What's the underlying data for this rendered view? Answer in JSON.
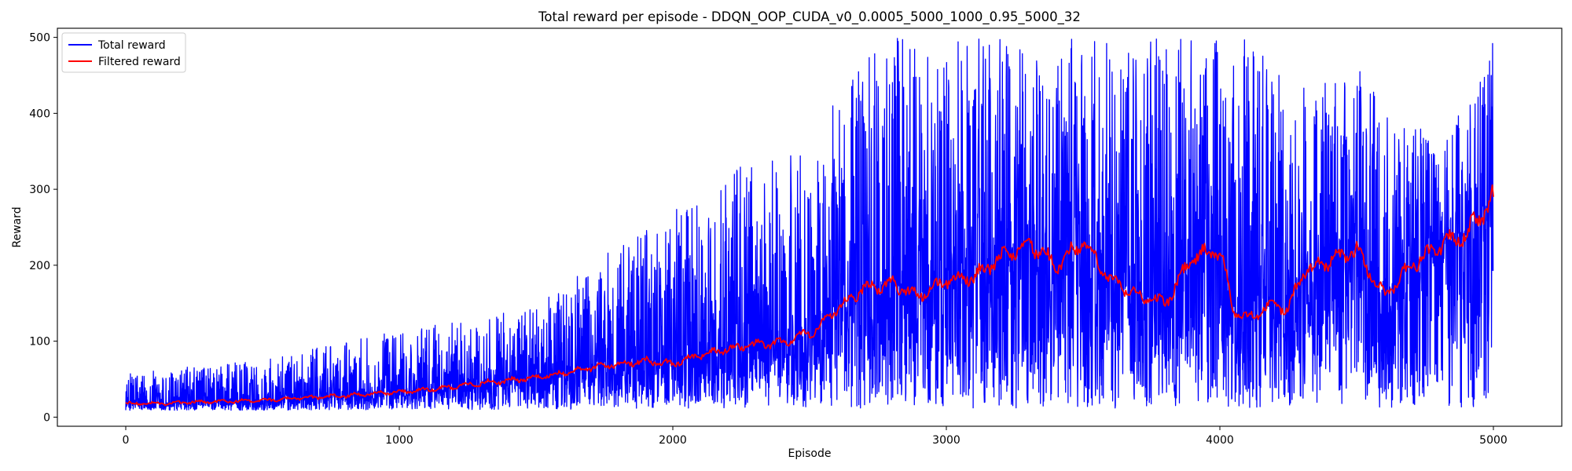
{
  "chart_data": {
    "type": "line",
    "title": "Total reward per episode - DDQN_OOP_CUDA_v0_0.0005_5000_1000_0.95_5000_32",
    "xlabel": "Episode",
    "ylabel": "Reward",
    "xlim": [
      -250,
      5250
    ],
    "ylim": [
      -12,
      512
    ],
    "xticks": [
      0,
      1000,
      2000,
      3000,
      4000,
      5000
    ],
    "yticks": [
      0,
      100,
      200,
      300,
      400,
      500
    ],
    "grid": false,
    "legend_position": "upper-left",
    "series": [
      {
        "name": "Total reward",
        "color": "#0000ff",
        "style": "noisy",
        "episodes": 5000,
        "approx_envelope": {
          "x": [
            0,
            500,
            1000,
            1300,
            1500,
            1800,
            2000,
            2300,
            2500,
            2700,
            2900,
            3000,
            3200,
            3300,
            3500,
            3700,
            3900,
            4000,
            4100,
            4200,
            4300,
            4500,
            4700,
            4900,
            5000
          ],
          "low": [
            9,
            9,
            10,
            10,
            10,
            11,
            11,
            11,
            12,
            12,
            12,
            12,
            12,
            12,
            12,
            12,
            12,
            12,
            12,
            12,
            12,
            12,
            12,
            12,
            12
          ],
          "high": [
            60,
            75,
            115,
            130,
            150,
            230,
            270,
            345,
            345,
            500,
            500,
            500,
            500,
            500,
            500,
            500,
            500,
            500,
            500,
            460,
            440,
            460,
            380,
            400,
            500
          ]
        }
      },
      {
        "name": "Filtered reward",
        "color": "#ff0000",
        "style": "smooth",
        "x": [
          0,
          100,
          200,
          300,
          400,
          500,
          600,
          700,
          800,
          900,
          1000,
          1100,
          1200,
          1300,
          1400,
          1500,
          1600,
          1700,
          1800,
          1900,
          2000,
          2100,
          2200,
          2300,
          2400,
          2500,
          2600,
          2700,
          2800,
          2900,
          3000,
          3100,
          3200,
          3300,
          3400,
          3500,
          3600,
          3700,
          3800,
          3900,
          4000,
          4050,
          4100,
          4150,
          4200,
          4250,
          4300,
          4400,
          4500,
          4600,
          4700,
          4800,
          4900,
          5000
        ],
        "y": [
          18,
          18,
          19,
          20,
          21,
          22,
          24,
          26,
          28,
          31,
          33,
          36,
          40,
          45,
          48,
          52,
          58,
          65,
          70,
          74,
          70,
          82,
          90,
          95,
          98,
          110,
          140,
          170,
          175,
          160,
          180,
          185,
          210,
          230,
          200,
          230,
          180,
          160,
          150,
          210,
          220,
          140,
          130,
          140,
          150,
          140,
          190,
          205,
          220,
          160,
          200,
          225,
          240,
          290
        ]
      }
    ]
  }
}
